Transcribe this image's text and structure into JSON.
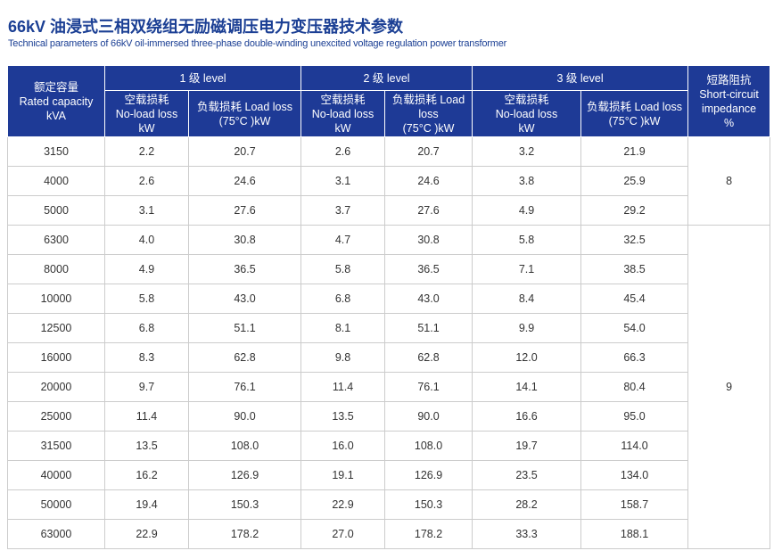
{
  "header": {
    "title": "66kV 油浸式三相双绕组无励磁调压电力变压器技术参数",
    "subtitle": "Technical parameters of 66kV oil-immersed three-phase double-winding unexcited voltage regulation power transformer"
  },
  "table": {
    "head": {
      "capacity": "额定容量\nRated capacity\nkVA",
      "levels": [
        "1 级 level",
        "2 级 level",
        "3 级 level"
      ],
      "sub": [
        [
          "空载损耗\nNo-load loss\nkW",
          "负载损耗 Load loss\n(75°C )kW"
        ],
        [
          "空载损耗\nNo-load loss\nkW",
          "负载损耗 Load\nloss\n(75°C )kW"
        ],
        [
          "空载损耗\nNo-load loss\nkW",
          "负载损耗 Load loss\n(75°C )kW"
        ]
      ],
      "impedance": "短路阻抗\nShort-circuit\nimpedance\n%"
    },
    "rows": [
      [
        "3150",
        "2.2",
        "20.7",
        "2.6",
        "20.7",
        "3.2",
        "21.9"
      ],
      [
        "4000",
        "2.6",
        "24.6",
        "3.1",
        "24.6",
        "3.8",
        "25.9"
      ],
      [
        "5000",
        "3.1",
        "27.6",
        "3.7",
        "27.6",
        "4.9",
        "29.2"
      ],
      [
        "6300",
        "4.0",
        "30.8",
        "4.7",
        "30.8",
        "5.8",
        "32.5"
      ],
      [
        "8000",
        "4.9",
        "36.5",
        "5.8",
        "36.5",
        "7.1",
        "38.5"
      ],
      [
        "10000",
        "5.8",
        "43.0",
        "6.8",
        "43.0",
        "8.4",
        "45.4"
      ],
      [
        "12500",
        "6.8",
        "51.1",
        "8.1",
        "51.1",
        "9.9",
        "54.0"
      ],
      [
        "16000",
        "8.3",
        "62.8",
        "9.8",
        "62.8",
        "12.0",
        "66.3"
      ],
      [
        "20000",
        "9.7",
        "76.1",
        "11.4",
        "76.1",
        "14.1",
        "80.4"
      ],
      [
        "25000",
        "11.4",
        "90.0",
        "13.5",
        "90.0",
        "16.6",
        "95.0"
      ],
      [
        "31500",
        "13.5",
        "108.0",
        "16.0",
        "108.0",
        "19.7",
        "114.0"
      ],
      [
        "40000",
        "16.2",
        "126.9",
        "19.1",
        "126.9",
        "23.5",
        "134.0"
      ],
      [
        "50000",
        "19.4",
        "150.3",
        "22.9",
        "150.3",
        "28.2",
        "158.7"
      ],
      [
        "63000",
        "22.9",
        "178.2",
        "27.0",
        "178.2",
        "33.3",
        "188.1"
      ]
    ],
    "impedance": [
      {
        "value": "8",
        "rows": 3
      },
      {
        "value": "9",
        "rows": 11
      }
    ]
  }
}
